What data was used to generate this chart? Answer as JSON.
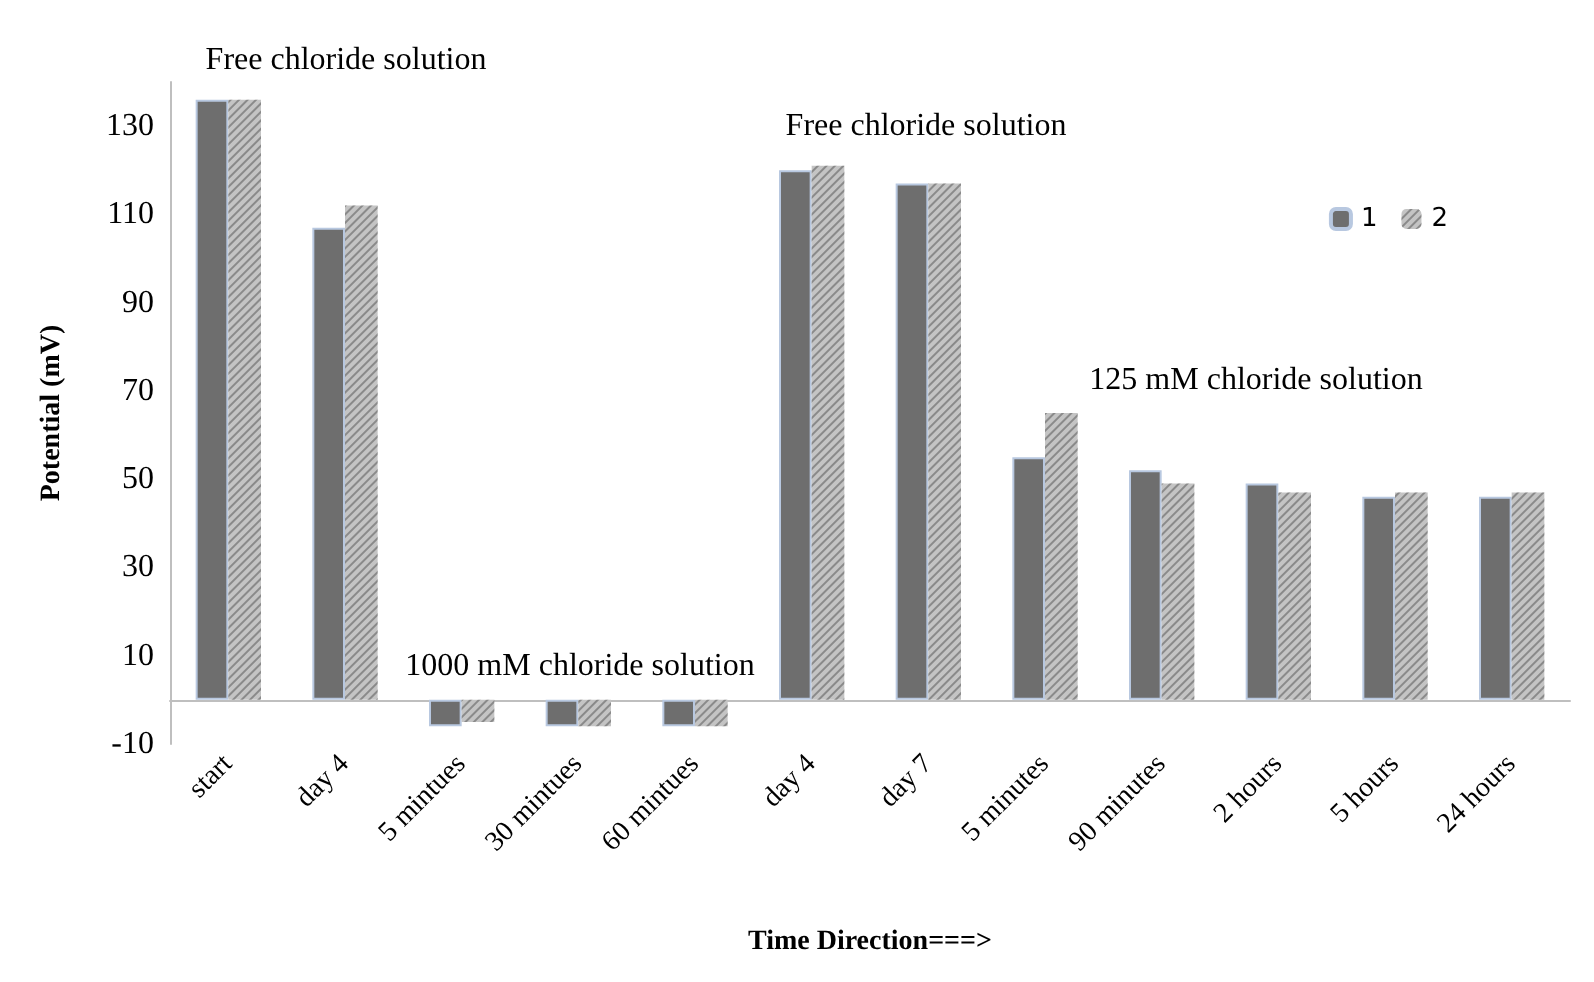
{
  "chart_data": {
    "type": "bar",
    "xlabel": "Time Direction===>",
    "ylabel": "Potential (mV)",
    "categories": [
      "start",
      "day 4",
      "5 mintues",
      "30 mintues",
      "60 mintues",
      "day 4",
      "day 7",
      "5 minutes",
      "90 minutes",
      "2 hours",
      "5 hours",
      "24 hours"
    ],
    "series": [
      {
        "name": "1",
        "color": "#6e6e6e",
        "values": [
          136,
          107,
          -6,
          -6,
          -6,
          120,
          117,
          55,
          52,
          49,
          46,
          46
        ]
      },
      {
        "name": "2",
        "color": "#c4c4c4",
        "values": [
          136,
          112,
          -5,
          -6,
          -6,
          121,
          117,
          65,
          49,
          47,
          47,
          47
        ]
      }
    ],
    "ylim": [
      -10,
      140
    ],
    "yticks": [
      -10,
      10,
      30,
      50,
      70,
      90,
      110,
      130
    ],
    "grid": false,
    "legend": "top right",
    "annotations": [
      "Free chloride solution",
      "1000 mM chloride solution",
      "Free chloride solution",
      "125 mM chloride solution"
    ]
  }
}
